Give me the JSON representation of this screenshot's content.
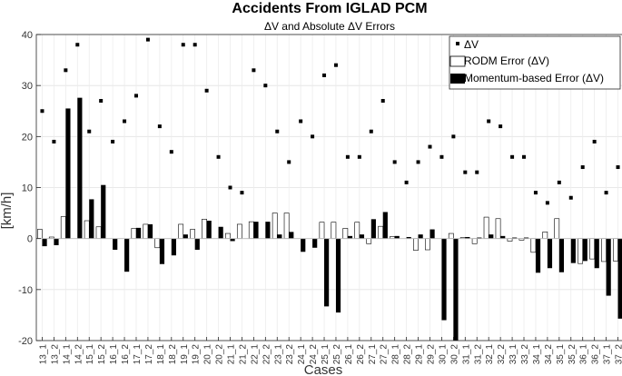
{
  "chart_data": {
    "type": "bar",
    "title": "Accidents From IGLAD PCM",
    "subtitle": "ΔV and Absolute ΔV Errors",
    "xlabel": "Cases",
    "ylabel": "[km/h]",
    "ylim": [
      -20,
      40
    ],
    "yticks": [
      -20,
      -10,
      0,
      10,
      20,
      30,
      40
    ],
    "grid": true,
    "legend_position": "top-right",
    "categories": [
      "13_1",
      "13_2",
      "14_1",
      "14_2",
      "15_1",
      "15_2",
      "16_1",
      "16_2",
      "17_1",
      "17_2",
      "18_1",
      "18_2",
      "19_1",
      "19_2",
      "20_1",
      "20_2",
      "21_1",
      "21_2",
      "22_1",
      "22_2",
      "23_1",
      "23_2",
      "24_1",
      "24_2",
      "25_1",
      "25_2",
      "26_1",
      "26_2",
      "27_1",
      "27_2",
      "28_1",
      "28_2",
      "29_1",
      "29_2",
      "30_1",
      "30_2",
      "31_1",
      "31_2",
      "32_1",
      "32_2",
      "33_1",
      "33_2",
      "34_1",
      "34_2",
      "35_1",
      "35_2",
      "36_1",
      "36_2",
      "37_1",
      "37_2"
    ],
    "series": [
      {
        "name": "ΔV",
        "kind": "marker",
        "values": [
          25,
          19,
          33,
          38,
          21,
          27,
          19,
          23,
          28,
          39,
          22,
          17,
          38,
          38,
          29,
          16,
          10,
          9,
          33,
          30,
          21,
          15,
          23,
          20,
          32,
          34,
          16,
          16,
          21,
          27,
          15,
          11,
          15,
          18,
          16,
          20,
          13,
          13,
          23,
          22,
          16,
          16,
          9,
          7,
          11,
          8,
          14,
          19,
          9,
          14
        ]
      },
      {
        "name": "RODM Error (ΔV)",
        "kind": "bar",
        "values": [
          1.8,
          0.3,
          4.3,
          0,
          3.5,
          2.3,
          0,
          0,
          2,
          2.8,
          -1.8,
          0,
          2.8,
          1.8,
          3.8,
          0,
          1,
          2.8,
          3.3,
          0,
          5,
          5,
          0,
          0,
          3.2,
          3.2,
          2,
          3.2,
          -1,
          2.4,
          0.4,
          0,
          -2.3,
          -2.2,
          0,
          1,
          0.2,
          -1,
          4.2,
          3.9,
          -0.5,
          -0.3,
          -2.7,
          1.3,
          3.9,
          0,
          -4.9,
          -4,
          -4.5,
          -4.4
        ]
      },
      {
        "name": "Momentum-based Error (ΔV)",
        "kind": "bar",
        "values": [
          -1.5,
          -1.3,
          25.5,
          27.6,
          7.7,
          10.5,
          -2.2,
          -6.5,
          2.1,
          2.8,
          -5,
          -3.3,
          0.8,
          -2.2,
          3.5,
          2.3,
          -0.5,
          0,
          3.3,
          3.3,
          0.8,
          1.3,
          -2.6,
          -1.8,
          -13.3,
          -14.5,
          0.5,
          0.8,
          3.8,
          5.2,
          0.5,
          0.3,
          0.8,
          1.8,
          -16,
          -20,
          0.3,
          0.2,
          0.8,
          0.5,
          0.2,
          0.2,
          -6.7,
          -5.8,
          -6.6,
          -4.8,
          -4.4,
          -5.8,
          -11.2,
          -15.7
        ]
      }
    ]
  }
}
